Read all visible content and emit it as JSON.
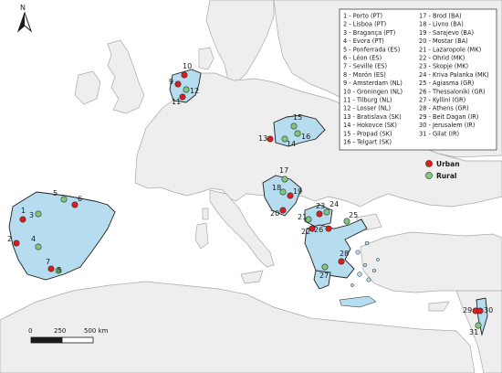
{
  "colors": {
    "sea": "#ffffff",
    "land": "#eeeeee",
    "coast": "#a8a8a8",
    "study_country": "#b5dcef",
    "study_border": "#202020",
    "urban": "#e31a1c",
    "rural": "#7fc97f"
  },
  "north_arrow": {
    "label": "N",
    "icon": "north-arrow-icon"
  },
  "legend": {
    "sites": [
      "1 - Porto (PT)",
      "2 - Lisboa (PT)",
      "3 - Bragança (PT)",
      "4 - Evora (PT)",
      "5 - Ponferrada (ES)",
      "6 - Léon (ES)",
      "7 - Seville (ES)",
      "8 - Morón (ES)",
      "9 - Amsterdam (NL)",
      "10 - Groningen (NL)",
      "11 - Tilburg (NL)",
      "12 - Losser (NL)",
      "13 - Bratislava (SK)",
      "14 - Hokovce (SK)",
      "15 - Propad (SK)",
      "16 - Telgart (SK)",
      "17 - Brod (BA)",
      "18 - Livno (BA)",
      "19 - Sarajevo (BA)",
      "20 - Mostar (BA)",
      "21 - Lazaropole (MK)",
      "22 - Ohrid (MK)",
      "23 - Skopje (MK)",
      "24 - Kriva Palanka (MK)",
      "25 - Agiasma (GR)",
      "26 - Thessaloniki (GR)",
      "27 - Kyllini (GR)",
      "28 - Athens (GR)",
      "29 - Beit Dagan (IR)",
      "30 - Jerusalem (IR)",
      "31 - Gilat (IR)"
    ],
    "categories": [
      {
        "label": "Urban",
        "type": "urban"
      },
      {
        "label": "Rural",
        "type": "rural"
      }
    ]
  },
  "scale_bar": {
    "labels": [
      "0",
      "250",
      "500 km"
    ]
  },
  "points": [
    {
      "id": "1",
      "type": "urban"
    },
    {
      "id": "2",
      "type": "urban"
    },
    {
      "id": "3",
      "type": "rural"
    },
    {
      "id": "4",
      "type": "rural"
    },
    {
      "id": "5",
      "type": "rural"
    },
    {
      "id": "6",
      "type": "urban"
    },
    {
      "id": "7",
      "type": "urban"
    },
    {
      "id": "8",
      "type": "rural"
    },
    {
      "id": "9",
      "type": "urban"
    },
    {
      "id": "10",
      "type": "urban"
    },
    {
      "id": "11",
      "type": "urban"
    },
    {
      "id": "12",
      "type": "rural"
    },
    {
      "id": "13",
      "type": "urban"
    },
    {
      "id": "14",
      "type": "rural"
    },
    {
      "id": "15",
      "type": "rural"
    },
    {
      "id": "16",
      "type": "rural"
    },
    {
      "id": "17",
      "type": "rural"
    },
    {
      "id": "18",
      "type": "rural"
    },
    {
      "id": "19",
      "type": "urban"
    },
    {
      "id": "20",
      "type": "urban"
    },
    {
      "id": "21",
      "type": "rural"
    },
    {
      "id": "22",
      "type": "urban"
    },
    {
      "id": "23",
      "type": "urban"
    },
    {
      "id": "24",
      "type": "rural"
    },
    {
      "id": "25",
      "type": "rural"
    },
    {
      "id": "26",
      "type": "urban"
    },
    {
      "id": "27",
      "type": "rural"
    },
    {
      "id": "28",
      "type": "urban"
    },
    {
      "id": "29",
      "type": "urban"
    },
    {
      "id": "30",
      "type": "urban"
    },
    {
      "id": "31",
      "type": "rural"
    }
  ]
}
